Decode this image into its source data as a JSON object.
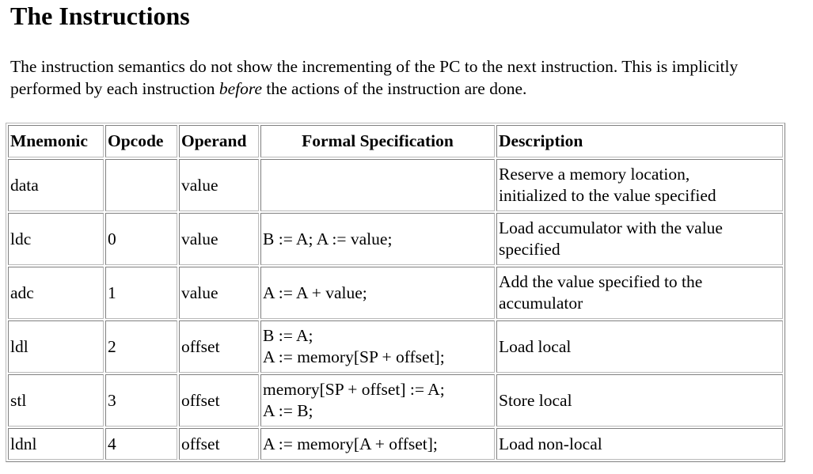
{
  "heading": "The Instructions",
  "intro": {
    "before_em": "The instruction semantics do not show the incrementing of the PC to the next instruction. This is implicitly performed by each instruction ",
    "em": "before",
    "after_em": " the actions of the instruction are done."
  },
  "table": {
    "headers": {
      "mnemonic": "Mnemonic",
      "opcode": "Opcode",
      "operand": "Operand",
      "formal": "Formal Specification",
      "description": "Description"
    },
    "rows": [
      {
        "mnemonic": "data",
        "opcode": "",
        "operand": "value",
        "formal": [
          "",
          ""
        ],
        "description": [
          "Reserve a memory location,",
          "initialized to the value specified"
        ]
      },
      {
        "mnemonic": "ldc",
        "opcode": "0",
        "operand": "value",
        "formal": [
          "B := A; A := value;",
          ""
        ],
        "description": [
          "Load accumulator with the value",
          "specified"
        ]
      },
      {
        "mnemonic": "adc",
        "opcode": "1",
        "operand": "value",
        "formal": [
          "A := A + value;",
          ""
        ],
        "description": [
          "Add the value specified to the",
          "accumulator"
        ]
      },
      {
        "mnemonic": "ldl",
        "opcode": "2",
        "operand": "offset",
        "formal": [
          "B := A;",
          "A := memory[SP + offset];"
        ],
        "description": [
          "Load local",
          ""
        ]
      },
      {
        "mnemonic": "stl",
        "opcode": "3",
        "operand": "offset",
        "formal": [
          "memory[SP + offset] := A;",
          "A := B;"
        ],
        "description": [
          "Store local",
          ""
        ]
      },
      {
        "mnemonic": "ldnl",
        "opcode": "4",
        "operand": "offset",
        "formal": [
          "A := memory[A + offset];",
          ""
        ],
        "description": [
          "Load non-local",
          ""
        ]
      }
    ]
  }
}
